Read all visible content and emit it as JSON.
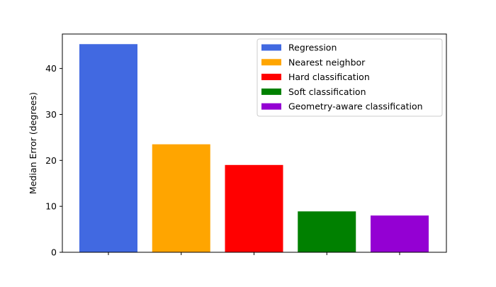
{
  "chart_data": {
    "type": "bar",
    "title": "",
    "xlabel": "",
    "ylabel": "Median Error (degrees)",
    "ylim": [
      0,
      47.5
    ],
    "yticks": [
      0,
      10,
      20,
      30,
      40
    ],
    "grid": false,
    "legend_position": "top-right",
    "series": [
      {
        "name": "Regression",
        "value": 45.3,
        "color": "#4169E1"
      },
      {
        "name": "Nearest neighbor",
        "value": 23.5,
        "color": "#FFA500"
      },
      {
        "name": "Hard classification",
        "value": 19.0,
        "color": "#FF0000"
      },
      {
        "name": "Soft classification",
        "value": 8.9,
        "color": "#008000"
      },
      {
        "name": "Geometry-aware classification",
        "value": 8.0,
        "color": "#9400D3"
      }
    ]
  }
}
